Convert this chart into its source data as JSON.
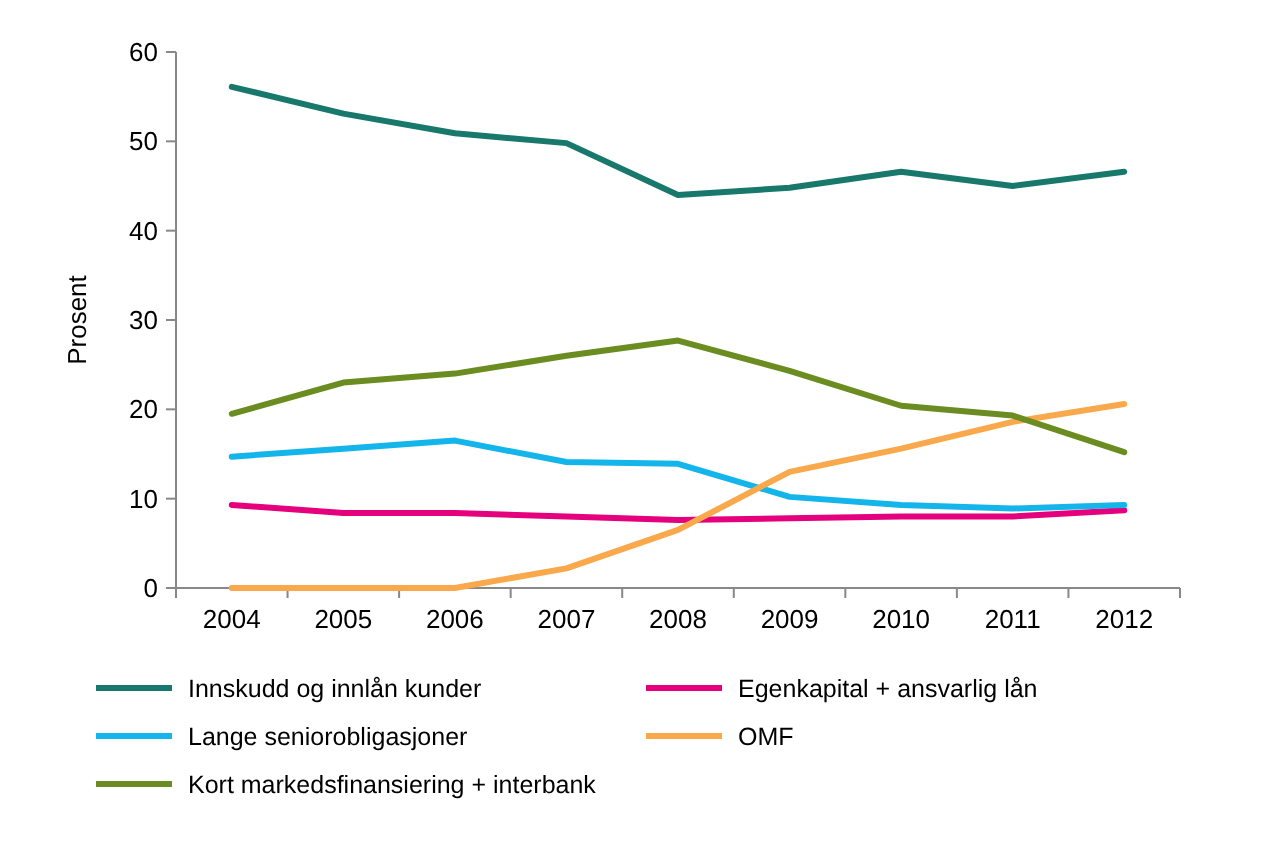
{
  "chart_data": {
    "type": "line",
    "ylabel": "Prosent",
    "categories": [
      "2004",
      "2005",
      "2006",
      "2007",
      "2008",
      "2009",
      "2010",
      "2011",
      "2012"
    ],
    "ylim": [
      0,
      60
    ],
    "yticks": [
      0,
      10,
      20,
      30,
      40,
      50,
      60
    ],
    "grid": false,
    "legend": "bottom",
    "marker": "none",
    "line_style": "solid",
    "series": [
      {
        "name": "Innskudd og innlån kunder",
        "color": "#17786b",
        "values": [
          56.1,
          53.1,
          50.9,
          49.8,
          44.0,
          44.8,
          46.6,
          45.0,
          46.6
        ]
      },
      {
        "name": "Egenkapital + ansvarlig lån",
        "color": "#e5007d",
        "values": [
          9.3,
          8.4,
          8.4,
          8.0,
          7.6,
          7.8,
          8.0,
          8.0,
          8.7
        ]
      },
      {
        "name": "Lange seniorobligasjoner",
        "color": "#13b5ea",
        "values": [
          14.7,
          15.6,
          16.5,
          14.1,
          13.9,
          10.2,
          9.3,
          8.9,
          9.3
        ]
      },
      {
        "name": "OMF",
        "color": "#f9a94b",
        "values": [
          0,
          0,
          0,
          2.2,
          6.5,
          13.0,
          15.6,
          18.6,
          20.6
        ]
      },
      {
        "name": "Kort markedsfinansiering + interbank",
        "color": "#6b8c21",
        "values": [
          19.5,
          23.0,
          24.0,
          26.0,
          27.7,
          24.3,
          20.4,
          19.3,
          15.2
        ]
      }
    ]
  }
}
